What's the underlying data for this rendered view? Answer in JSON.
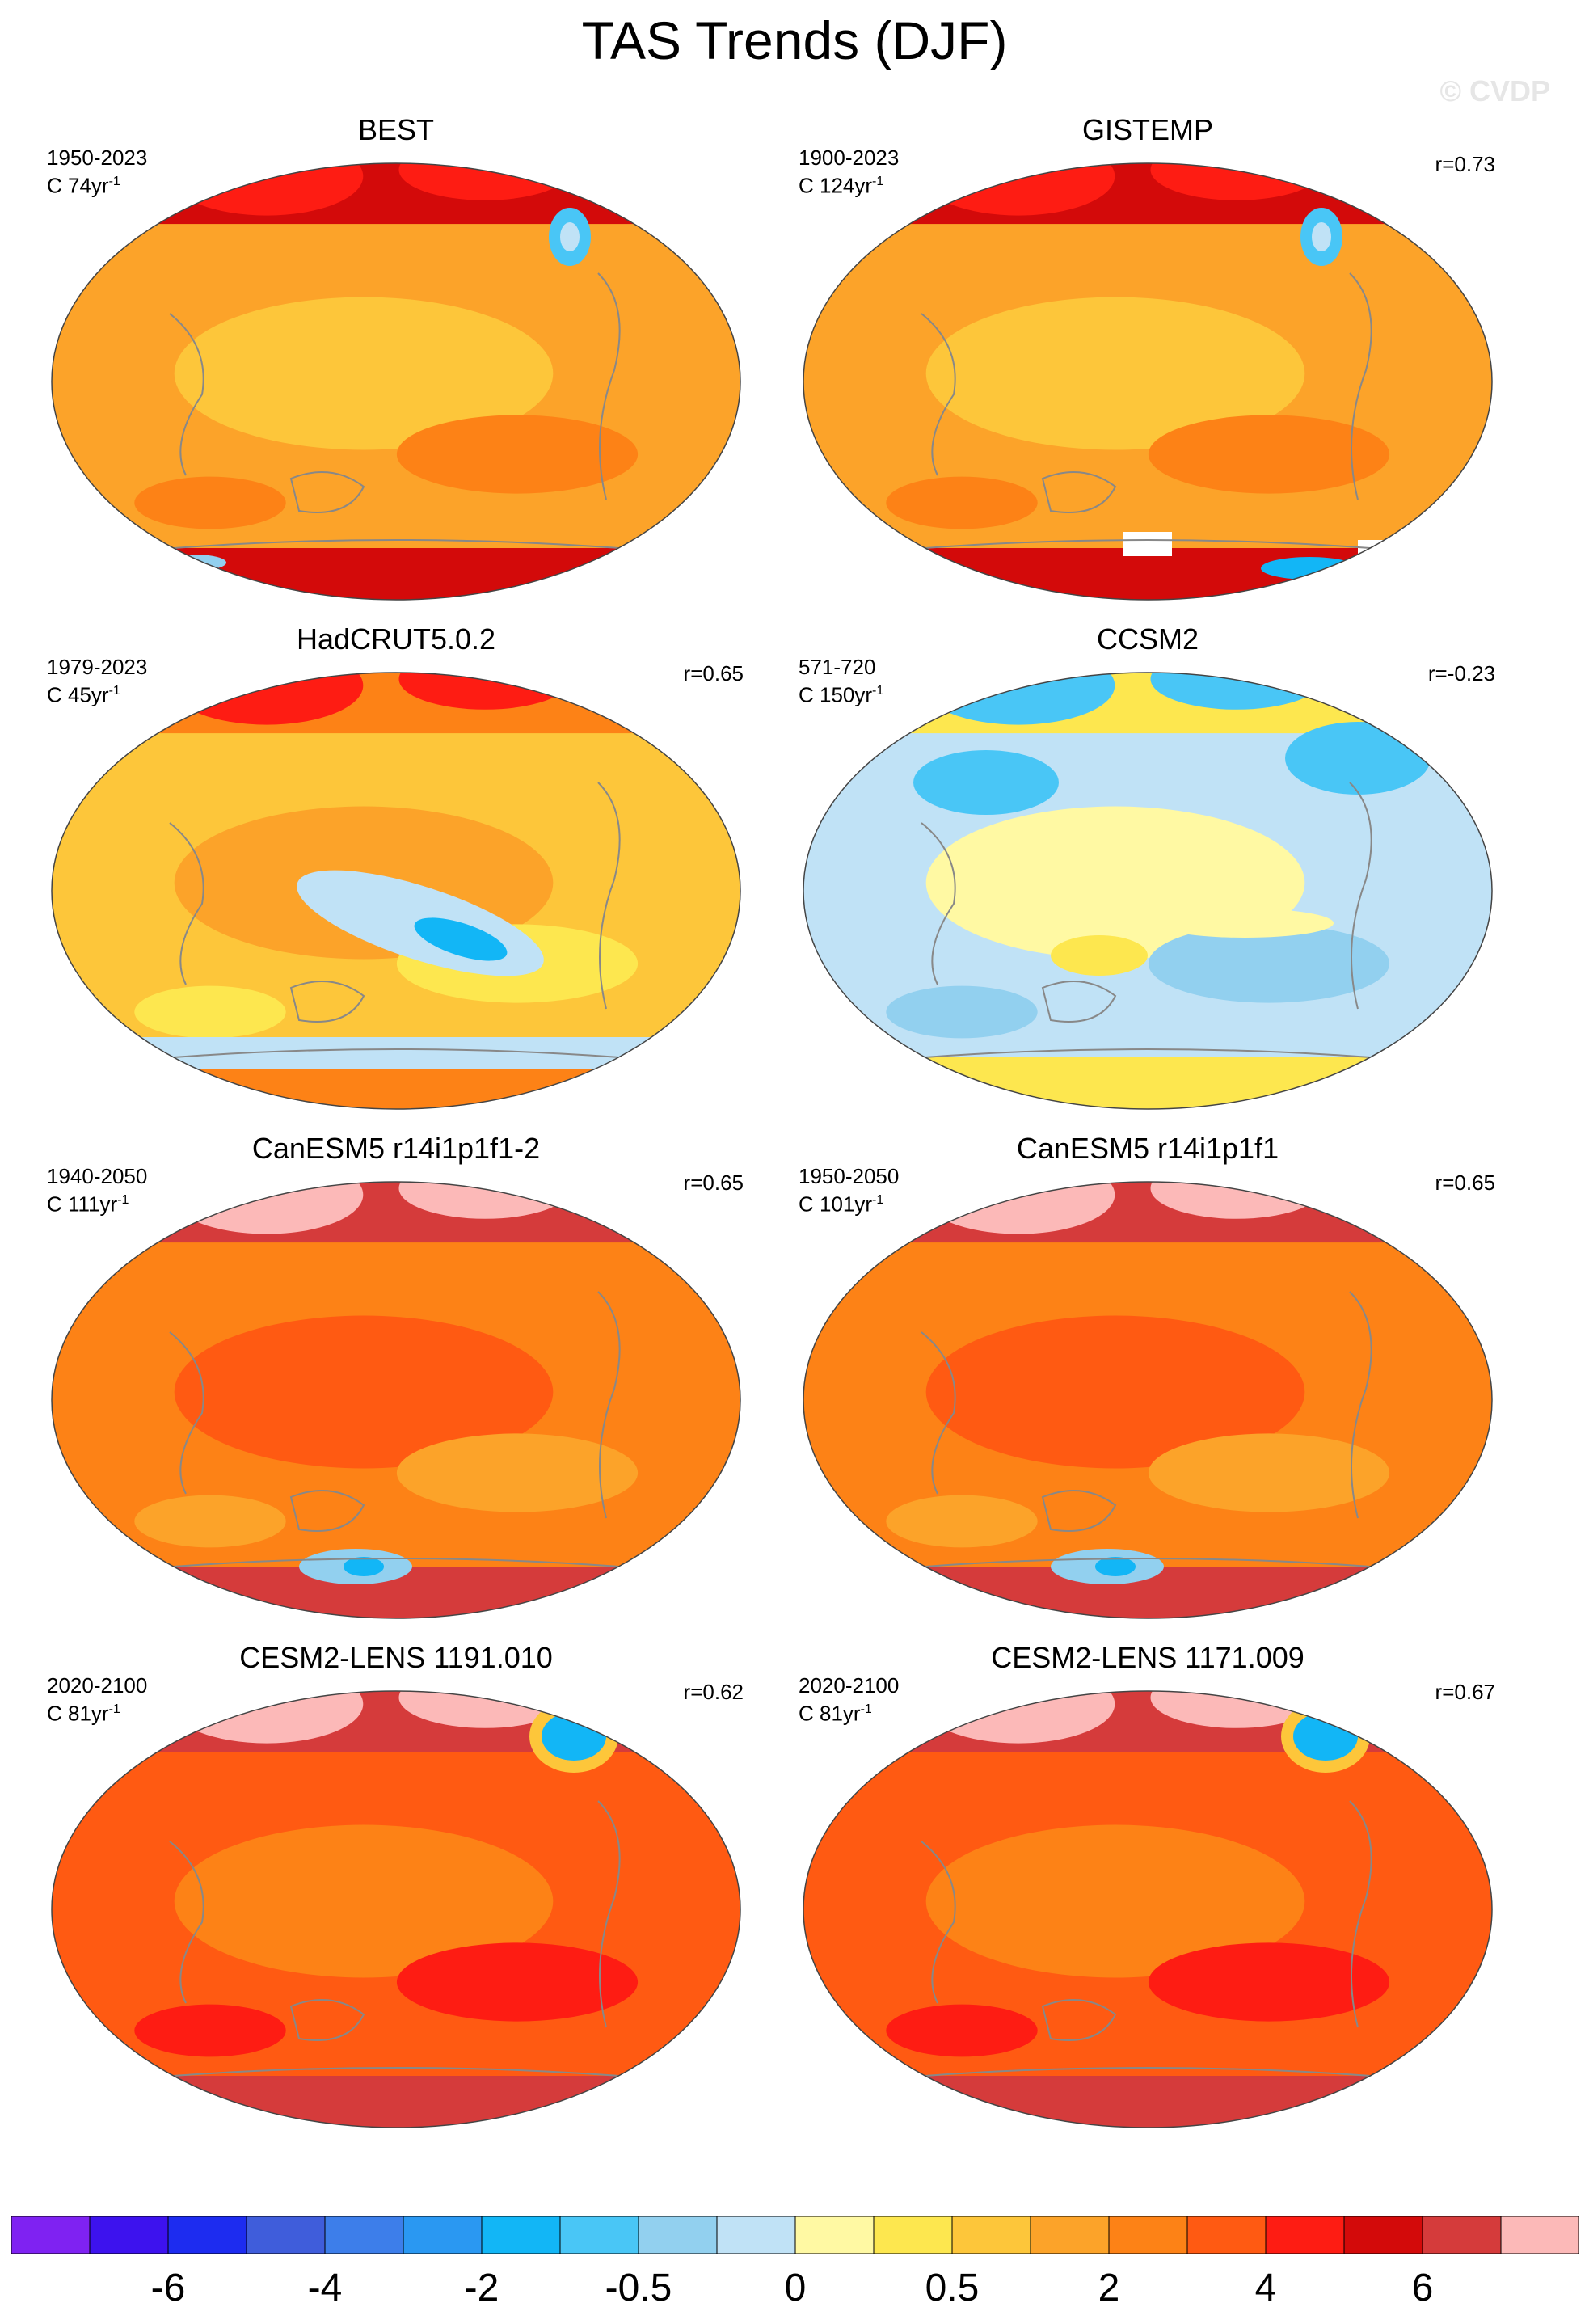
{
  "title": "TAS Trends (DJF)",
  "watermark": "© CVDP",
  "chart_data": {
    "type": "map",
    "variable": "TAS",
    "season": "DJF",
    "projection": "Hammer / equal-area world projection, Pacific-centered",
    "colorbar": {
      "colors": [
        "#7f22f2",
        "#3d12ee",
        "#1d2cf0",
        "#3f5ddb",
        "#3d7eea",
        "#2a98f2",
        "#12b6f6",
        "#49c6f6",
        "#92d0ef",
        "#c0e2f6",
        "#fff9a3",
        "#fde74f",
        "#fdc63a",
        "#fca329",
        "#fd8216",
        "#ff5a12",
        "#fe1c13",
        "#d30a0a",
        "#d53b3b",
        "#fcb9b8"
      ],
      "tick_labels": [
        "-6",
        "-4",
        "-2",
        "-0.5",
        "0",
        "0.5",
        "2",
        "4",
        "6"
      ],
      "tick_boundary_index": [
        2,
        4,
        6,
        8,
        10,
        12,
        14,
        16,
        18
      ]
    },
    "panels": [
      {
        "title": "BEST",
        "period": "1950-2023",
        "units_prefix": "C 74yr",
        "units_exp": "-1",
        "corr": "",
        "regime": "obs_warm",
        "cold_spot": "greenland",
        "cold_spot2": "ant_edge"
      },
      {
        "title": "GISTEMP",
        "period": "1900-2023",
        "units_prefix": "C 124yr",
        "units_exp": "-1",
        "corr": "r=0.73",
        "regime": "obs_warm",
        "cold_spot": "greenland",
        "cold_spot2": "ant_blue"
      },
      {
        "title": "HadCRUT5.0.2",
        "period": "1979-2023",
        "units_prefix": "C 45yr",
        "units_exp": "-1",
        "corr": "r=0.65",
        "regime": "obs_mixed",
        "cold_spot": "pacific",
        "cold_spot2": "southern"
      },
      {
        "title": "CCSM2",
        "period": "571-720",
        "units_prefix": "C 150yr",
        "units_exp": "-1",
        "corr": "r=-0.23",
        "regime": "control",
        "cold_spot": "",
        "cold_spot2": ""
      },
      {
        "title": "CanESM5 r14i1p1f1-2",
        "period": "1940-2050",
        "units_prefix": "C 111yr",
        "units_exp": "-1",
        "corr": "r=0.65",
        "regime": "model_hot",
        "cold_spot": "antarctica",
        "cold_spot2": ""
      },
      {
        "title": "CanESM5 r14i1p1f1",
        "period": "1950-2050",
        "units_prefix": "C 101yr",
        "units_exp": "-1",
        "corr": "r=0.65",
        "regime": "model_hot",
        "cold_spot": "antarctica",
        "cold_spot2": ""
      },
      {
        "title": "CESM2-LENS 1191.010",
        "period": "2020-2100",
        "units_prefix": "C 81yr",
        "units_exp": "-1",
        "corr": "r=0.62",
        "regime": "model_hotter",
        "cold_spot": "labrador",
        "cold_spot2": ""
      },
      {
        "title": "CESM2-LENS 1171.009",
        "period": "2020-2100",
        "units_prefix": "C 81yr",
        "units_exp": "-1",
        "corr": "r=0.67",
        "regime": "model_hotter",
        "cold_spot": "labrador",
        "cold_spot2": ""
      }
    ]
  }
}
